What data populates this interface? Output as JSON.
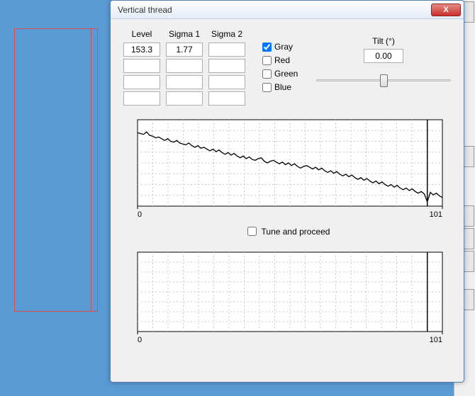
{
  "window": {
    "title": "Vertical thread",
    "close": "X"
  },
  "columns": {
    "level_label": "Level",
    "sigma1_label": "Sigma 1",
    "sigma2_label": "Sigma 2",
    "rows": [
      {
        "level": "153.3",
        "sigma1": "1.77",
        "sigma2": ""
      },
      {
        "level": "",
        "sigma1": "",
        "sigma2": ""
      },
      {
        "level": "",
        "sigma1": "",
        "sigma2": ""
      },
      {
        "level": "",
        "sigma1": "",
        "sigma2": ""
      }
    ]
  },
  "channels": {
    "gray": {
      "label": "Gray",
      "checked": true
    },
    "red": {
      "label": "Red",
      "checked": false
    },
    "green": {
      "label": "Green",
      "checked": false
    },
    "blue": {
      "label": "Blue",
      "checked": false
    }
  },
  "tilt": {
    "label": "Tilt (°)",
    "value": "0.00",
    "slider_pos": 0.5
  },
  "tune": {
    "label": "Tune and proceed",
    "checked": false
  },
  "chart1": {
    "type": "line",
    "xlim": [
      0,
      101
    ],
    "ylim": [
      0,
      100
    ],
    "x_start_label": "0",
    "x_end_label": "101",
    "grid_color": "#c8c8c8",
    "line_color": "#000000",
    "bg_color": "#ffffff",
    "cursor_x": 96,
    "values": [
      85,
      84,
      83,
      86,
      82,
      81,
      79,
      80,
      78,
      76,
      78,
      75,
      74,
      76,
      73,
      72,
      71,
      73,
      70,
      68,
      70,
      67,
      68,
      66,
      64,
      66,
      63,
      65,
      62,
      60,
      62,
      59,
      61,
      58,
      56,
      58,
      55,
      57,
      54,
      53,
      55,
      56,
      52,
      50,
      52,
      53,
      51,
      49,
      51,
      48,
      50,
      47,
      49,
      46,
      44,
      46,
      47,
      45,
      43,
      45,
      42,
      44,
      41,
      39,
      41,
      38,
      40,
      37,
      35,
      37,
      34,
      36,
      33,
      31,
      33,
      30,
      32,
      29,
      27,
      29,
      26,
      28,
      25,
      23,
      25,
      22,
      24,
      21,
      19,
      21,
      18,
      20,
      17,
      15,
      17,
      14,
      5,
      16,
      13,
      15,
      12,
      10
    ]
  },
  "chart2": {
    "type": "line",
    "xlim": [
      0,
      101
    ],
    "ylim": [
      0,
      100
    ],
    "x_start_label": "0",
    "x_end_label": "101",
    "grid_color": "#c8c8c8",
    "line_color": "#000000",
    "bg_color": "#ffffff",
    "cursor_x": 96,
    "values": []
  }
}
